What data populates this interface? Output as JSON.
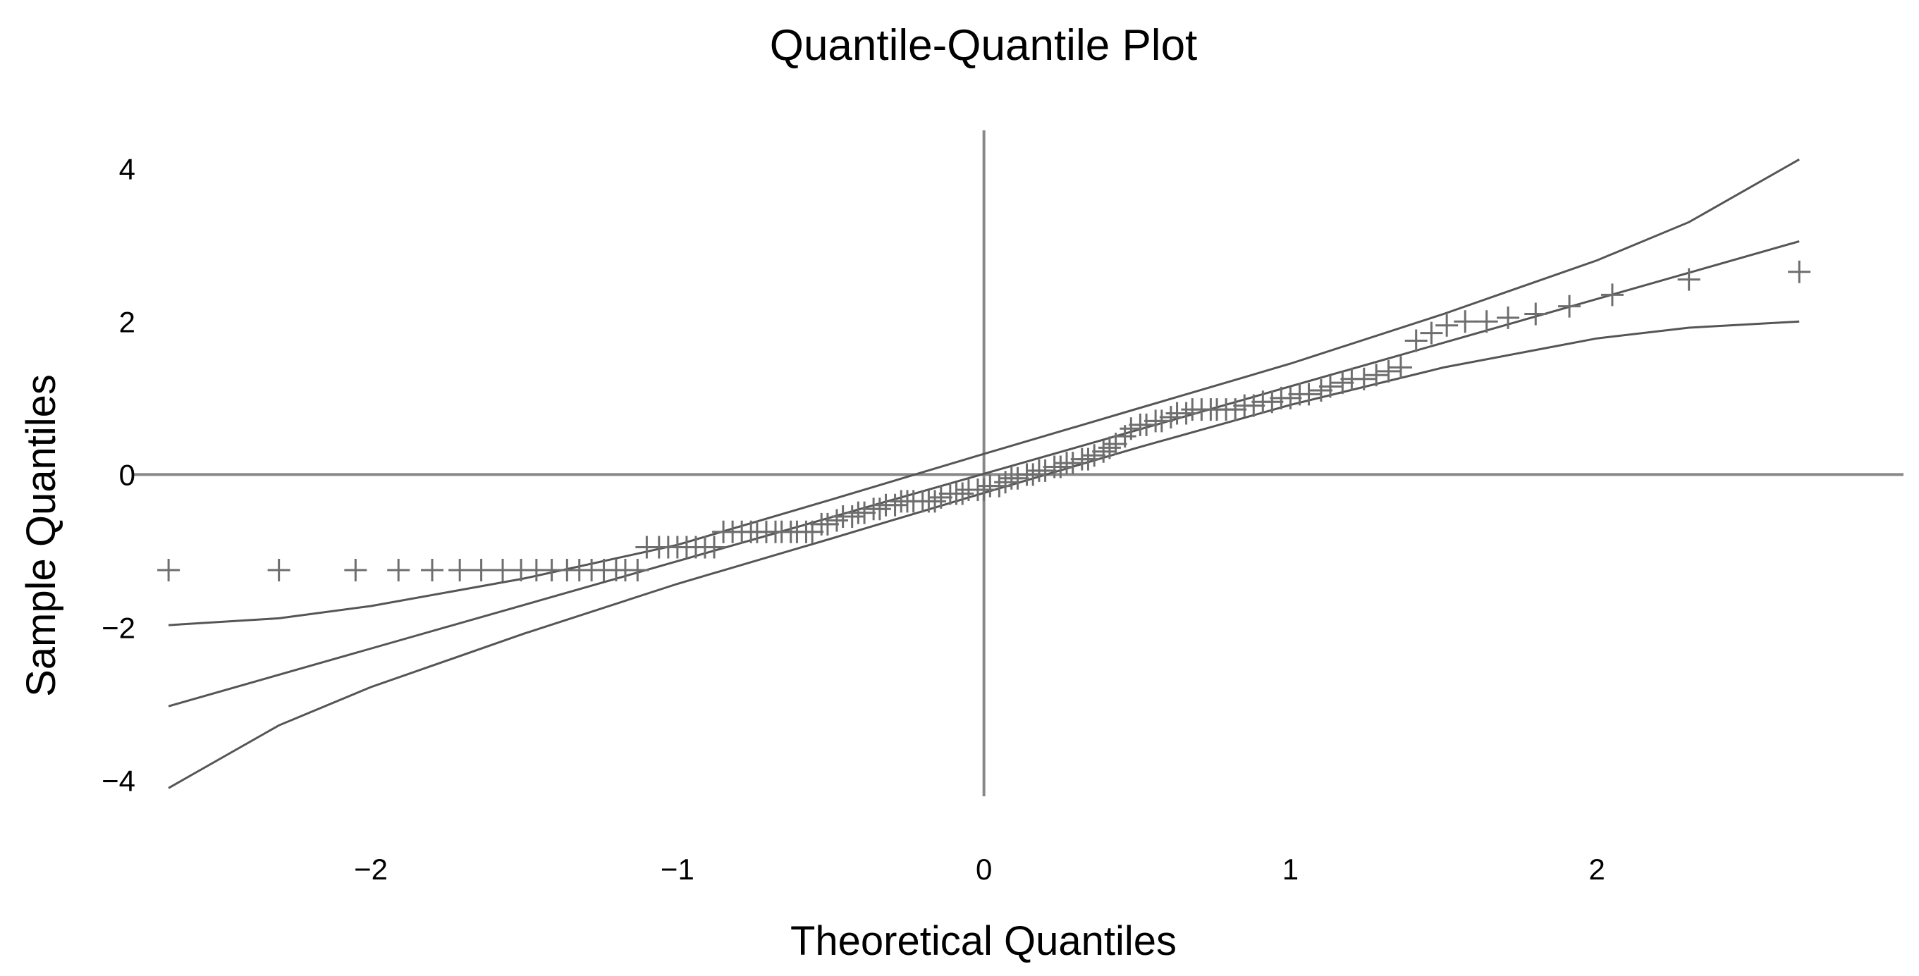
{
  "chart_data": {
    "type": "scatter",
    "title": "Quantile-Quantile Plot",
    "xlabel": "Theoretical Quantiles",
    "ylabel": "Sample Quantiles",
    "xlim": [
      -2.75,
      3.0
    ],
    "ylim": [
      -4.3,
      4.5
    ],
    "xticks": [
      -2,
      -1,
      0,
      1,
      2
    ],
    "xtick_labels": [
      "−2",
      "−1",
      "0",
      "1",
      "2"
    ],
    "yticks": [
      -4,
      -2,
      0,
      2,
      4
    ],
    "ytick_labels": [
      "−4",
      "−2",
      "0",
      "2",
      "4"
    ],
    "grid": false,
    "legend": "none",
    "reference_lines": [
      "y=0",
      "x=0"
    ],
    "marker": "plus",
    "colors": {
      "points": "#6e6e6e",
      "lines": "#555555",
      "axes": "#888888"
    },
    "series": [
      {
        "role": "sample",
        "x": [
          -2.66,
          -2.3,
          -2.05,
          -1.91,
          -1.8,
          -1.71,
          -1.64,
          -1.57,
          -1.51,
          -1.46,
          -1.41,
          -1.36,
          -1.32,
          -1.28,
          -1.24,
          -1.2,
          -1.17,
          -1.13,
          -1.1,
          -1.06,
          -1.03,
          -1.0,
          -0.97,
          -0.94,
          -0.91,
          -0.88,
          -0.85,
          -0.82,
          -0.79,
          -0.76,
          -0.74,
          -0.71,
          -0.68,
          -0.66,
          -0.63,
          -0.61,
          -0.58,
          -0.56,
          -0.53,
          -0.51,
          -0.48,
          -0.46,
          -0.43,
          -0.41,
          -0.39,
          -0.36,
          -0.34,
          -0.32,
          -0.29,
          -0.27,
          -0.25,
          -0.23,
          -0.2,
          -0.18,
          -0.16,
          -0.14,
          -0.11,
          -0.09,
          -0.07,
          -0.05,
          -0.02,
          0.0,
          0.02,
          0.05,
          0.07,
          0.09,
          0.11,
          0.14,
          0.16,
          0.18,
          0.2,
          0.23,
          0.25,
          0.27,
          0.29,
          0.32,
          0.34,
          0.36,
          0.39,
          0.41,
          0.43,
          0.46,
          0.48,
          0.51,
          0.53,
          0.56,
          0.58,
          0.61,
          0.63,
          0.66,
          0.68,
          0.71,
          0.74,
          0.76,
          0.79,
          0.82,
          0.85,
          0.88,
          0.91,
          0.94,
          0.97,
          1.0,
          1.03,
          1.06,
          1.1,
          1.13,
          1.17,
          1.2,
          1.24,
          1.28,
          1.32,
          1.36,
          1.41,
          1.46,
          1.51,
          1.57,
          1.64,
          1.71,
          1.8,
          1.91,
          2.05,
          2.3,
          2.66
        ],
        "y": [
          -1.25,
          -1.25,
          -1.25,
          -1.25,
          -1.25,
          -1.25,
          -1.25,
          -1.25,
          -1.25,
          -1.25,
          -1.25,
          -1.25,
          -1.25,
          -1.25,
          -1.25,
          -1.25,
          -1.25,
          -1.25,
          -0.95,
          -0.95,
          -0.95,
          -0.95,
          -0.95,
          -0.95,
          -0.95,
          -0.95,
          -0.75,
          -0.75,
          -0.75,
          -0.75,
          -0.75,
          -0.75,
          -0.75,
          -0.75,
          -0.75,
          -0.75,
          -0.75,
          -0.75,
          -0.65,
          -0.65,
          -0.6,
          -0.55,
          -0.55,
          -0.5,
          -0.5,
          -0.45,
          -0.45,
          -0.4,
          -0.4,
          -0.35,
          -0.35,
          -0.35,
          -0.35,
          -0.35,
          -0.35,
          -0.3,
          -0.25,
          -0.25,
          -0.25,
          -0.2,
          -0.2,
          -0.2,
          -0.15,
          -0.15,
          -0.1,
          -0.05,
          -0.05,
          0.0,
          0.0,
          0.05,
          0.05,
          0.1,
          0.1,
          0.15,
          0.15,
          0.2,
          0.2,
          0.25,
          0.3,
          0.35,
          0.4,
          0.5,
          0.6,
          0.65,
          0.65,
          0.7,
          0.7,
          0.75,
          0.8,
          0.8,
          0.85,
          0.85,
          0.85,
          0.85,
          0.85,
          0.85,
          0.9,
          0.9,
          0.95,
          0.95,
          1.0,
          1.0,
          1.05,
          1.05,
          1.1,
          1.15,
          1.2,
          1.25,
          1.25,
          1.3,
          1.35,
          1.4,
          1.75,
          1.85,
          1.95,
          2.0,
          2.0,
          2.05,
          2.1,
          2.2,
          2.35,
          2.55,
          2.65
        ]
      },
      {
        "role": "reference-line",
        "x": [
          -2.66,
          2.66
        ],
        "y": [
          -3.03,
          3.05
        ]
      },
      {
        "role": "upper-confidence-band",
        "x": [
          -2.66,
          -2.3,
          -2.0,
          -1.5,
          -1.0,
          -0.5,
          0.0,
          0.5,
          1.0,
          1.5,
          2.0,
          2.3,
          2.66
        ],
        "y": [
          -1.97,
          -1.88,
          -1.72,
          -1.36,
          -0.92,
          -0.33,
          0.27,
          0.86,
          1.45,
          2.1,
          2.8,
          3.3,
          4.12
        ]
      },
      {
        "role": "lower-confidence-band",
        "x": [
          -2.66,
          -2.3,
          -2.0,
          -1.5,
          -1.0,
          -0.5,
          0.0,
          0.5,
          1.0,
          1.5,
          2.0,
          2.3,
          2.66
        ],
        "y": [
          -4.1,
          -3.28,
          -2.78,
          -2.08,
          -1.43,
          -0.84,
          -0.24,
          0.35,
          0.91,
          1.4,
          1.78,
          1.92,
          2.0
        ]
      }
    ]
  }
}
